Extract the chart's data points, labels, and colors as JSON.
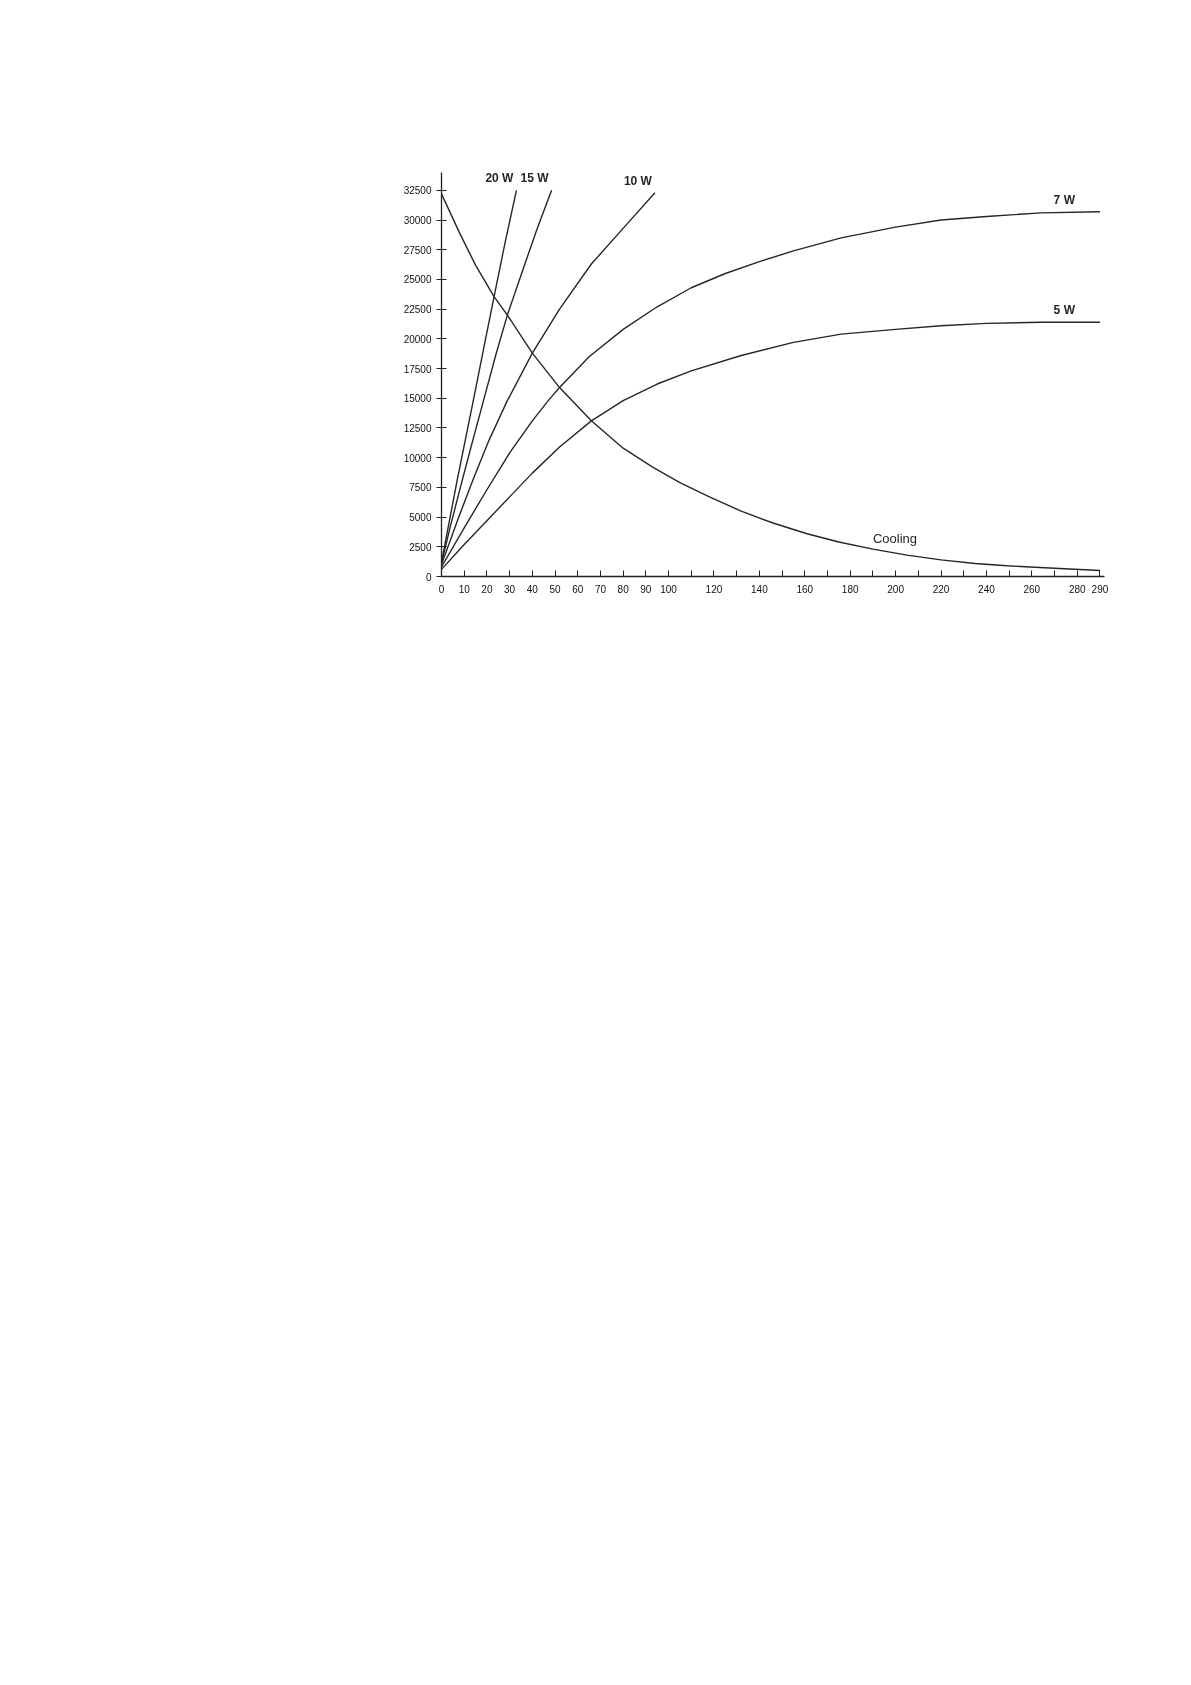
{
  "chart_data": {
    "type": "line",
    "xlim": [
      0,
      292
    ],
    "ylim": [
      0,
      34000
    ],
    "xticks": [
      0,
      10,
      20,
      30,
      40,
      50,
      60,
      70,
      80,
      90,
      100,
      {
        "value": 110,
        "label": null
      },
      120,
      {
        "value": 130,
        "label": null
      },
      140,
      {
        "value": 150,
        "label": null
      },
      160,
      {
        "value": 170,
        "label": null
      },
      180,
      {
        "value": 190,
        "label": null
      },
      200,
      {
        "value": 210,
        "label": null
      },
      220,
      {
        "value": 230,
        "label": null
      },
      240,
      {
        "value": 250,
        "label": null
      },
      260,
      {
        "value": 270,
        "label": null
      },
      280,
      290
    ],
    "yticks": [
      0,
      2500,
      5000,
      7500,
      10000,
      12500,
      15000,
      17500,
      20000,
      22500,
      25000,
      27500,
      30000,
      32500
    ],
    "series": [
      {
        "name": "20 W",
        "color": "#262626",
        "x": [
          0,
          4,
          7,
          14,
          19,
          23,
          28,
          33
        ],
        "values": [
          1200,
          5200,
          8200,
          14800,
          19600,
          23400,
          28100,
          32500
        ]
      },
      {
        "name": "15 W",
        "color": "#262626",
        "x": [
          0,
          4,
          9,
          13,
          18.5,
          24,
          29,
          36,
          42,
          48.5
        ],
        "values": [
          1100,
          4300,
          8000,
          10900,
          14800,
          18700,
          22000,
          25900,
          29200,
          32500
        ]
      },
      {
        "name": "10 W",
        "color": "#262626",
        "x": [
          0,
          7,
          14,
          21,
          29,
          40,
          52,
          66,
          80,
          94
        ],
        "values": [
          1000,
          4700,
          8200,
          11500,
          14800,
          18800,
          22500,
          26300,
          29300,
          32300
        ]
      },
      {
        "name": "7 W",
        "color": "#262626",
        "x": [
          0,
          10,
          20,
          30,
          40,
          47,
          52,
          65,
          80,
          95,
          110,
          125,
          140,
          155,
          176,
          200,
          220,
          240,
          264,
          290
        ],
        "values": [
          800,
          4100,
          7300,
          10400,
          13100,
          14800,
          15900,
          18500,
          20800,
          22700,
          24300,
          25500,
          26500,
          27400,
          28500,
          29400,
          30000,
          30300,
          30600,
          30700
        ]
      },
      {
        "name": "5 W",
        "color": "#262626",
        "x": [
          0,
          10,
          20,
          30,
          40,
          52,
          66,
          80,
          95,
          110,
          132,
          155,
          176,
          200,
          220,
          240,
          264,
          290
        ],
        "values": [
          600,
          2700,
          4700,
          6700,
          8700,
          10900,
          13100,
          14800,
          16200,
          17300,
          18600,
          19700,
          20400,
          20800,
          21100,
          21300,
          21400,
          21400
        ]
      },
      {
        "name": "Cooling",
        "color": "#262626",
        "x": [
          0,
          8,
          15,
          23,
          29,
          40,
          52,
          66,
          80,
          93,
          105,
          118,
          132,
          146,
          161,
          175,
          190,
          205,
          220,
          235,
          249,
          270,
          290
        ],
        "values": [
          32200,
          28900,
          26200,
          23600,
          22000,
          18800,
          15900,
          13100,
          10800,
          9200,
          7900,
          6700,
          5500,
          4500,
          3600,
          2900,
          2300,
          1800,
          1400,
          1100,
          900,
          700,
          500
        ]
      }
    ]
  }
}
